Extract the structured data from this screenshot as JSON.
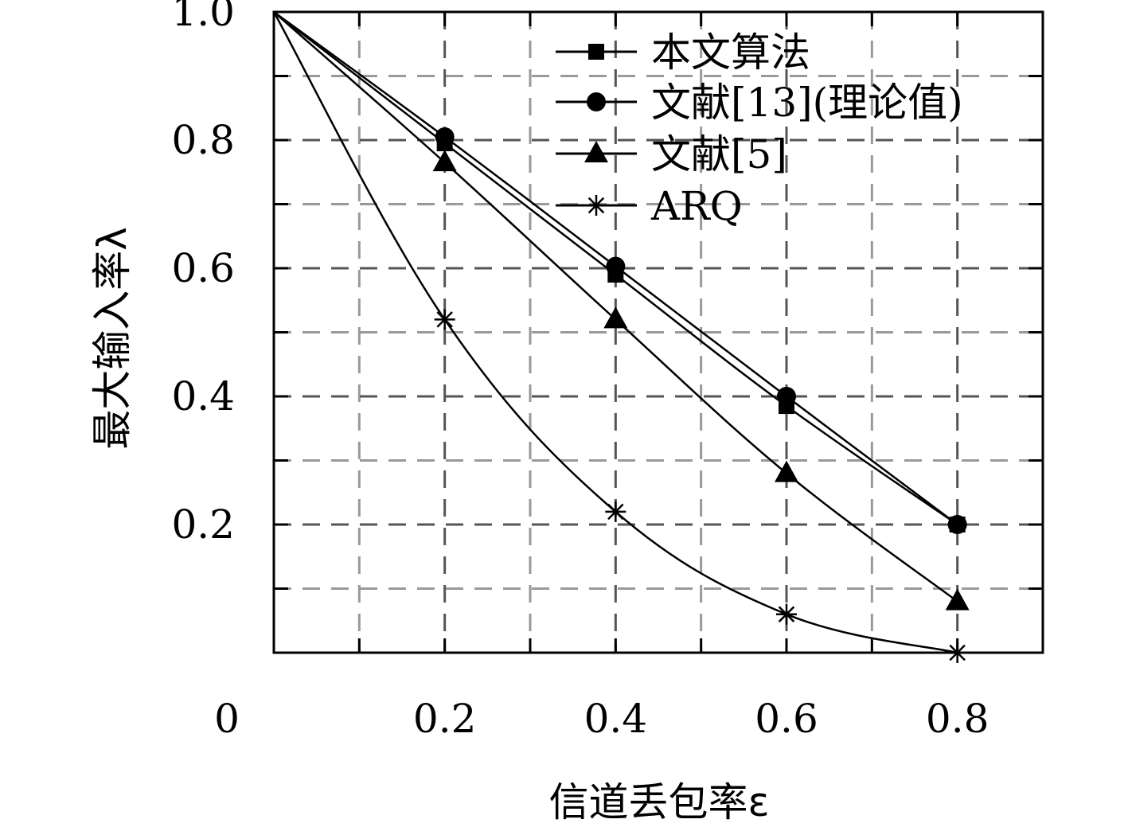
{
  "chart_data": {
    "type": "line",
    "title": "",
    "xlabel": "信道丢包率ε",
    "ylabel": "最大输入率λ",
    "xlim": [
      0,
      0.9
    ],
    "ylim": [
      0,
      1.0
    ],
    "x_ticks": [
      0,
      0.2,
      0.4,
      0.6,
      0.8
    ],
    "x_tick_labels": [
      "0",
      "0.2",
      "0.4",
      "0.6",
      "0.8"
    ],
    "y_ticks": [
      0.2,
      0.4,
      0.6,
      0.8,
      1.0
    ],
    "y_tick_labels": [
      "0.2",
      "0.4",
      "0.6",
      "0.8",
      "1.0"
    ],
    "grid": true,
    "legend_position": "top-right",
    "series": [
      {
        "name": "本文算法",
        "marker": "square",
        "x": [
          0,
          0.2,
          0.4,
          0.6,
          0.8
        ],
        "y": [
          1.0,
          0.795,
          0.59,
          0.385,
          0.2
        ]
      },
      {
        "name": "文献[13](理论值)",
        "marker": "circle",
        "x": [
          0,
          0.2,
          0.4,
          0.6,
          0.8
        ],
        "y": [
          1.0,
          0.805,
          0.603,
          0.4,
          0.2
        ]
      },
      {
        "name": "文献[5]",
        "marker": "triangle",
        "x": [
          0,
          0.2,
          0.4,
          0.6,
          0.8
        ],
        "y": [
          1.0,
          0.765,
          0.52,
          0.28,
          0.08
        ]
      },
      {
        "name": "ARQ",
        "marker": "star",
        "x": [
          0,
          0.2,
          0.4,
          0.6,
          0.8
        ],
        "y": [
          1.0,
          0.52,
          0.22,
          0.06,
          0.0
        ]
      }
    ]
  }
}
